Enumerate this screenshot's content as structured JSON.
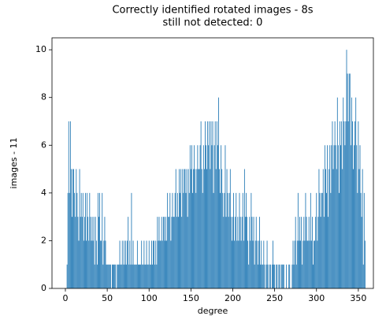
{
  "chart_data": {
    "type": "bar",
    "title": "Correctly identified rotated images - 8s",
    "subtitle": "still not detected: 0",
    "xlabel": "degree",
    "ylabel": "images - 11",
    "color": "#1f77b4",
    "xlim": [
      -16,
      368
    ],
    "ylim": [
      0,
      10.5
    ],
    "xticks": [
      0,
      50,
      100,
      150,
      200,
      250,
      300,
      350
    ],
    "yticks": [
      0,
      2,
      4,
      6,
      8,
      10
    ],
    "x": [
      0,
      1,
      2,
      3,
      4,
      5,
      6,
      7,
      8,
      9,
      10,
      11,
      12,
      13,
      14,
      15,
      16,
      17,
      18,
      19,
      20,
      21,
      22,
      23,
      24,
      25,
      26,
      27,
      28,
      29,
      30,
      31,
      32,
      33,
      34,
      35,
      36,
      37,
      38,
      39,
      40,
      41,
      42,
      43,
      44,
      45,
      46,
      47,
      48,
      49,
      50,
      51,
      52,
      53,
      54,
      55,
      56,
      57,
      58,
      59,
      60,
      61,
      62,
      63,
      64,
      65,
      66,
      67,
      68,
      69,
      70,
      71,
      72,
      73,
      74,
      75,
      76,
      77,
      78,
      79,
      80,
      81,
      82,
      83,
      84,
      85,
      86,
      87,
      88,
      89,
      90,
      91,
      92,
      93,
      94,
      95,
      96,
      97,
      98,
      99,
      100,
      101,
      102,
      103,
      104,
      105,
      106,
      107,
      108,
      109,
      110,
      111,
      112,
      113,
      114,
      115,
      116,
      117,
      118,
      119,
      120,
      121,
      122,
      123,
      124,
      125,
      126,
      127,
      128,
      129,
      130,
      131,
      132,
      133,
      134,
      135,
      136,
      137,
      138,
      139,
      140,
      141,
      142,
      143,
      144,
      145,
      146,
      147,
      148,
      149,
      150,
      151,
      152,
      153,
      154,
      155,
      156,
      157,
      158,
      159,
      160,
      161,
      162,
      163,
      164,
      165,
      166,
      167,
      168,
      169,
      170,
      171,
      172,
      173,
      174,
      175,
      176,
      177,
      178,
      179,
      180,
      181,
      182,
      183,
      184,
      185,
      186,
      187,
      188,
      189,
      190,
      191,
      192,
      193,
      194,
      195,
      196,
      197,
      198,
      199,
      200,
      201,
      202,
      203,
      204,
      205,
      206,
      207,
      208,
      209,
      210,
      211,
      212,
      213,
      214,
      215,
      216,
      217,
      218,
      219,
      220,
      221,
      222,
      223,
      224,
      225,
      226,
      227,
      228,
      229,
      230,
      231,
      232,
      233,
      234,
      235,
      236,
      237,
      238,
      239,
      240,
      241,
      242,
      243,
      244,
      245,
      246,
      247,
      248,
      249,
      250,
      251,
      252,
      253,
      254,
      255,
      256,
      257,
      258,
      259,
      260,
      261,
      262,
      263,
      264,
      265,
      266,
      267,
      268,
      269,
      270,
      271,
      272,
      273,
      274,
      275,
      276,
      277,
      278,
      279,
      280,
      281,
      282,
      283,
      284,
      285,
      286,
      287,
      288,
      289,
      290,
      291,
      292,
      293,
      294,
      295,
      296,
      297,
      298,
      299,
      300,
      301,
      302,
      303,
      304,
      305,
      306,
      307,
      308,
      309,
      310,
      311,
      312,
      313,
      314,
      315,
      316,
      317,
      318,
      319,
      320,
      321,
      322,
      323,
      324,
      325,
      326,
      327,
      328,
      329,
      330,
      331,
      332,
      333,
      334,
      335,
      336,
      337,
      338,
      339,
      340,
      341,
      342,
      343,
      344,
      345,
      346,
      347,
      348,
      349,
      350,
      351,
      352,
      353,
      354,
      355,
      356,
      357,
      358,
      359
    ],
    "values": [
      0,
      0,
      1,
      4,
      7,
      4,
      7,
      5,
      3,
      5,
      5,
      4,
      3,
      5,
      4,
      3,
      2,
      5,
      3,
      4,
      3,
      4,
      2,
      3,
      4,
      2,
      4,
      3,
      2,
      4,
      3,
      2,
      3,
      2,
      3,
      1,
      3,
      2,
      1,
      4,
      3,
      4,
      2,
      2,
      4,
      1,
      2,
      3,
      2,
      1,
      1,
      1,
      1,
      1,
      1,
      0,
      1,
      1,
      1,
      1,
      1,
      0,
      1,
      1,
      1,
      2,
      1,
      1,
      2,
      1,
      2,
      1,
      2,
      1,
      2,
      3,
      1,
      2,
      1,
      4,
      1,
      2,
      1,
      1,
      1,
      1,
      2,
      1,
      1,
      1,
      1,
      2,
      1,
      1,
      2,
      1,
      1,
      2,
      1,
      1,
      2,
      1,
      1,
      2,
      1,
      2,
      2,
      1,
      2,
      1,
      3,
      2,
      3,
      2,
      2,
      3,
      2,
      3,
      3,
      2,
      3,
      2,
      4,
      3,
      3,
      4,
      2,
      3,
      4,
      3,
      3,
      4,
      5,
      3,
      4,
      3,
      5,
      4,
      5,
      3,
      5,
      4,
      5,
      5,
      4,
      5,
      3,
      5,
      4,
      6,
      5,
      6,
      4,
      5,
      6,
      5,
      4,
      5,
      6,
      5,
      5,
      6,
      7,
      5,
      4,
      6,
      5,
      7,
      6,
      5,
      7,
      6,
      7,
      5,
      7,
      6,
      7,
      4,
      6,
      7,
      5,
      7,
      6,
      8,
      5,
      4,
      6,
      5,
      4,
      3,
      4,
      6,
      3,
      5,
      4,
      3,
      4,
      5,
      3,
      2,
      3,
      4,
      2,
      3,
      4,
      2,
      3,
      2,
      4,
      3,
      2,
      3,
      4,
      2,
      5,
      3,
      4,
      3,
      2,
      1,
      3,
      2,
      4,
      3,
      2,
      3,
      1,
      2,
      3,
      2,
      1,
      2,
      3,
      1,
      2,
      1,
      1,
      2,
      1,
      0,
      1,
      2,
      1,
      0,
      1,
      1,
      0,
      1,
      2,
      1,
      1,
      0,
      1,
      1,
      0,
      1,
      1,
      0,
      1,
      1,
      1,
      1,
      0,
      0,
      1,
      0,
      0,
      1,
      1,
      0,
      0,
      1,
      2,
      1,
      2,
      3,
      1,
      2,
      4,
      2,
      3,
      2,
      3,
      1,
      2,
      3,
      2,
      4,
      3,
      2,
      2,
      3,
      2,
      4,
      2,
      3,
      1,
      2,
      2,
      3,
      4,
      2,
      3,
      5,
      4,
      3,
      4,
      4,
      5,
      3,
      6,
      5,
      4,
      6,
      3,
      5,
      6,
      4,
      6,
      7,
      5,
      6,
      7,
      6,
      5,
      8,
      6,
      4,
      7,
      6,
      7,
      5,
      8,
      7,
      6,
      7,
      10,
      9,
      7,
      9,
      9,
      6,
      8,
      7,
      5,
      6,
      7,
      8,
      6,
      4,
      7,
      5,
      6,
      4,
      3,
      5,
      1,
      4,
      2,
      0
    ]
  }
}
